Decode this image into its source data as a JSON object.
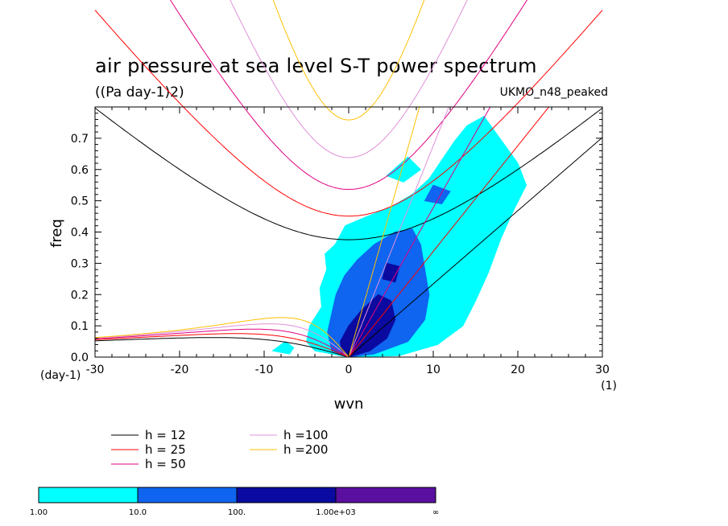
{
  "chart_data": {
    "type": "heatmap",
    "title": "air pressure at sea level S-T power spectrum",
    "subtitle": "((Pa day-1)2)",
    "source": "UKMO_n48_peaked",
    "xlabel": "wvn",
    "ylabel": "freq",
    "x_unit": "(1)",
    "y_unit": "(day-1)",
    "xlim": [
      -30,
      30
    ],
    "ylim": [
      0,
      0.8
    ],
    "xticks": [
      -30,
      -20,
      -10,
      0,
      10,
      20,
      30
    ],
    "xtick_labels": [
      "-30",
      "-20",
      "-10",
      "0",
      "10",
      "20",
      "30"
    ],
    "yticks": [
      0,
      0.1,
      0.2,
      0.3,
      0.4,
      0.5,
      0.6,
      0.7
    ],
    "ytick_labels": [
      "0.0",
      "0.1",
      "0.2",
      "0.3",
      "0.4",
      "0.5",
      "0.6",
      "0.7"
    ],
    "color_levels": [
      {
        "from": 1,
        "to": 10,
        "color": "#00ffff"
      },
      {
        "from": 10,
        "to": 100,
        "color": "#0f64f0"
      },
      {
        "from": 100,
        "to": 1000,
        "color": "#0a0aa0"
      },
      {
        "from": 1000,
        "to": "inf",
        "color": "#5a0fa0"
      }
    ],
    "colorbar_labels": [
      "1.00",
      "10.0",
      "100.",
      "1.00e+03",
      "∞"
    ],
    "dispersion_curves": [
      {
        "name": "h = 12",
        "h": 12,
        "color": "#000000"
      },
      {
        "name": "h = 25",
        "h": 25,
        "color": "#ff0000"
      },
      {
        "name": "h = 50",
        "h": 50,
        "color": "#e00080"
      },
      {
        "name": "h =100",
        "h": 100,
        "color": "#e090d8"
      },
      {
        "name": "h =200",
        "h": 200,
        "color": "#ffc000"
      }
    ],
    "spectrum_regions": [
      {
        "level": 1,
        "polygon": [
          [
            -4,
            0.02
          ],
          [
            -5,
            0.05
          ],
          [
            -4.6,
            0.1
          ],
          [
            -3.2,
            0.16
          ],
          [
            -3.4,
            0.22
          ],
          [
            -2.6,
            0.28
          ],
          [
            -2.8,
            0.33
          ],
          [
            -1.6,
            0.36
          ],
          [
            -0.4,
            0.42
          ],
          [
            2.2,
            0.45
          ],
          [
            5,
            0.48
          ],
          [
            7.5,
            0.52
          ],
          [
            9.5,
            0.57
          ],
          [
            11,
            0.63
          ],
          [
            12.5,
            0.69
          ],
          [
            14,
            0.74
          ],
          [
            16,
            0.77
          ],
          [
            20,
            0.62
          ],
          [
            21,
            0.55
          ],
          [
            19.5,
            0.47
          ],
          [
            18,
            0.38
          ],
          [
            16.5,
            0.27
          ],
          [
            15,
            0.18
          ],
          [
            13.5,
            0.1
          ],
          [
            10.5,
            0.04
          ],
          [
            6,
            0.005
          ],
          [
            0,
            0.0
          ]
        ]
      },
      {
        "level": 1,
        "polygon": [
          [
            4.5,
            0.58
          ],
          [
            6.5,
            0.56
          ],
          [
            8.5,
            0.6
          ],
          [
            7,
            0.64
          ]
        ]
      },
      {
        "level": 1,
        "polygon": [
          [
            -9,
            0.02
          ],
          [
            -7.5,
            0.05
          ],
          [
            -6.5,
            0.03
          ],
          [
            -7,
            0.01
          ]
        ]
      },
      {
        "level": 2,
        "polygon": [
          [
            -2,
            0.02
          ],
          [
            -2.5,
            0.08
          ],
          [
            -2,
            0.14
          ],
          [
            -1.5,
            0.2
          ],
          [
            -0.5,
            0.26
          ],
          [
            1,
            0.31
          ],
          [
            3,
            0.36
          ],
          [
            5.5,
            0.4
          ],
          [
            7.5,
            0.41
          ],
          [
            8.5,
            0.36
          ],
          [
            9,
            0.28
          ],
          [
            9.5,
            0.2
          ],
          [
            9,
            0.12
          ],
          [
            7,
            0.05
          ],
          [
            3,
            0.01
          ],
          [
            0,
            0.0
          ]
        ]
      },
      {
        "level": 2,
        "polygon": [
          [
            9,
            0.5
          ],
          [
            11,
            0.49
          ],
          [
            12,
            0.53
          ],
          [
            10,
            0.55
          ]
        ]
      },
      {
        "level": 3,
        "polygon": [
          [
            -0.8,
            0.01
          ],
          [
            -1,
            0.05
          ],
          [
            0,
            0.1
          ],
          [
            1.5,
            0.15
          ],
          [
            3.5,
            0.2
          ],
          [
            5,
            0.18
          ],
          [
            5.5,
            0.12
          ],
          [
            4.5,
            0.06
          ],
          [
            2.5,
            0.02
          ],
          [
            0,
            0.0
          ]
        ]
      },
      {
        "level": 3,
        "polygon": [
          [
            4,
            0.25
          ],
          [
            5.5,
            0.24
          ],
          [
            6,
            0.29
          ],
          [
            4.5,
            0.3
          ]
        ]
      }
    ]
  }
}
